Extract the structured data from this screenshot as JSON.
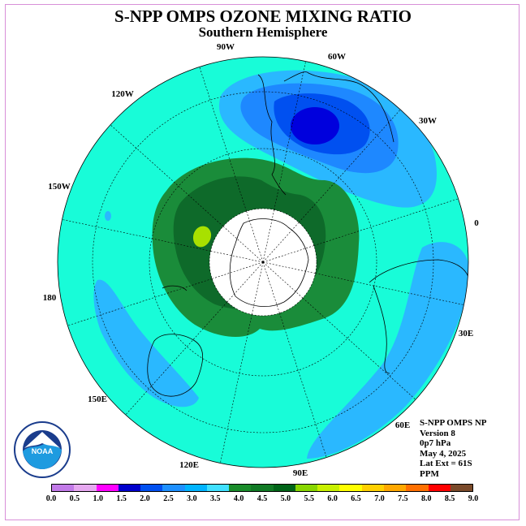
{
  "title": "S-NPP OMPS OZONE MIXING RATIO",
  "subtitle": "Southern Hemisphere",
  "longitude_labels": {
    "w90": "90W",
    "w60": "60W",
    "w30": "30W",
    "w120": "120W",
    "w150": "150W",
    "zero": "0",
    "w180": "180",
    "e30": "30E",
    "e60": "60E",
    "e90": "90E",
    "e120": "120E",
    "e150": "150E"
  },
  "info": {
    "line1": "S-NPP OMPS NP",
    "line2": "Version 8",
    "line3": "0p7 hPa",
    "line4": "May 4, 2025",
    "line5": "Lat Ext = 61S",
    "line6": "PPM"
  },
  "logo": {
    "text": "NOAA",
    "ring_text": "NATIONAL OCEANIC AND ATMOSPHERIC ADMINISTRATION  U.S. DEPARTMENT OF COMMERCE"
  },
  "colorbar": {
    "ticks": [
      "0.0",
      "0.5",
      "1.0",
      "1.5",
      "2.0",
      "2.5",
      "3.0",
      "3.5",
      "4.0",
      "4.5",
      "5.0",
      "5.5",
      "6.0",
      "6.5",
      "7.0",
      "7.5",
      "8.0",
      "8.5",
      "9.0"
    ],
    "colors": [
      "#c27ae8",
      "#e6a8f0",
      "#ff00ff",
      "#0000cc",
      "#0050f0",
      "#1e90ff",
      "#00b4ff",
      "#40e0ff",
      "#1a8c2a",
      "#117a25",
      "#006418",
      "#88d600",
      "#c8f000",
      "#ffff00",
      "#ffd000",
      "#ffa800",
      "#ff7000",
      "#ff0000",
      "#7a4a2a"
    ]
  },
  "map_colors": {
    "background": "#18fcd8",
    "green_outer": "#1a8c3a",
    "green_inner": "#0e6a2a",
    "lime": "#88d600",
    "blue_light": "#2ab8ff",
    "blue_mid": "#1e88ff",
    "blue_dark": "#0050f0",
    "blue_core": "#0000dd",
    "pole_blank": "#ffffff"
  }
}
